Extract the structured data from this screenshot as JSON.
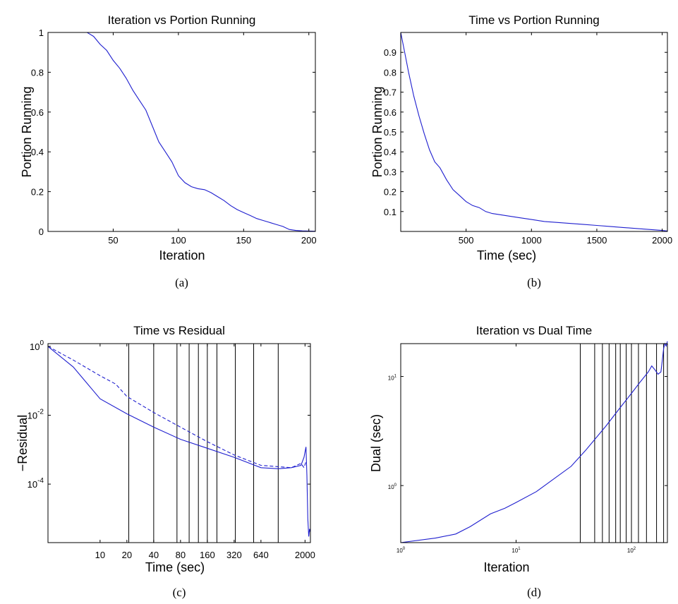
{
  "chart_data": [
    {
      "id": "a",
      "type": "line",
      "title": "Iteration vs Portion Running",
      "xlabel": "Iteration",
      "ylabel": "Portion Running",
      "caption": "(a)",
      "xlim": [
        0,
        205
      ],
      "ylim": [
        0,
        1
      ],
      "xticks": [
        50,
        100,
        150,
        200
      ],
      "yticks": [
        0,
        0.2,
        0.4,
        0.6,
        0.8,
        1
      ],
      "ytick_labels": [
        "0",
        "0.2",
        "0.4",
        "0.6",
        "0.8",
        "1"
      ],
      "series": [
        {
          "x": [
            0,
            10,
            20,
            30,
            35,
            40,
            45,
            50,
            55,
            60,
            65,
            70,
            75,
            80,
            85,
            90,
            95,
            100,
            105,
            110,
            115,
            120,
            125,
            130,
            135,
            140,
            145,
            150,
            155,
            160,
            165,
            170,
            175,
            180,
            185,
            190,
            195,
            200,
            205
          ],
          "y": [
            1,
            1,
            1,
            1,
            0.98,
            0.94,
            0.91,
            0.86,
            0.82,
            0.77,
            0.71,
            0.66,
            0.61,
            0.53,
            0.45,
            0.4,
            0.35,
            0.28,
            0.245,
            0.225,
            0.215,
            0.21,
            0.195,
            0.175,
            0.155,
            0.13,
            0.11,
            0.095,
            0.08,
            0.065,
            0.055,
            0.045,
            0.035,
            0.025,
            0.01,
            0.005,
            0.003,
            0.002,
            0.001
          ]
        }
      ]
    },
    {
      "id": "b",
      "type": "line",
      "title": "Time vs Portion Running",
      "xlabel": "Time (sec)",
      "ylabel": "Portion Running",
      "caption": "(b)",
      "xlim": [
        0,
        2040
      ],
      "ylim": [
        0,
        1
      ],
      "xticks": [
        500,
        1000,
        1500,
        2000
      ],
      "yticks": [
        0.1,
        0.2,
        0.3,
        0.4,
        0.5,
        0.6,
        0.7,
        0.8,
        0.9
      ],
      "ytick_labels": [
        "0.1",
        "0.2",
        "0.3",
        "0.4",
        "0.5",
        "0.6",
        "0.7",
        "0.8",
        "0.9"
      ],
      "series": [
        {
          "x": [
            0,
            30,
            60,
            100,
            140,
            180,
            220,
            260,
            300,
            350,
            400,
            450,
            500,
            550,
            600,
            650,
            700,
            800,
            900,
            1000,
            1100,
            1200,
            1300,
            1400,
            1500,
            1600,
            1700,
            1800,
            1900,
            2000,
            2040
          ],
          "y": [
            1,
            0.9,
            0.8,
            0.68,
            0.58,
            0.49,
            0.41,
            0.35,
            0.32,
            0.26,
            0.21,
            0.18,
            0.15,
            0.13,
            0.12,
            0.1,
            0.09,
            0.08,
            0.07,
            0.06,
            0.05,
            0.045,
            0.04,
            0.035,
            0.03,
            0.025,
            0.02,
            0.015,
            0.01,
            0.005,
            0.002
          ]
        }
      ]
    },
    {
      "id": "c",
      "type": "line",
      "title": "Time vs Residual",
      "xlabel": "Time (sec)",
      "ylabel": "−Residual",
      "caption": "(c)",
      "xscale": "log",
      "yscale": "log",
      "xlim": [
        2.6,
        2300
      ],
      "ylim": [
        2e-06,
        1.2
      ],
      "xticks": [
        10,
        20,
        40,
        80,
        160,
        320,
        640,
        2000
      ],
      "xtick_labels": [
        "10",
        "20",
        "40",
        "80",
        "160",
        "320",
        "640",
        "2000"
      ],
      "yticks": [
        1,
        0.01,
        0.0001
      ],
      "ytick_labels": [
        "10^0",
        "10^-2",
        "10^-4"
      ],
      "vlines": [
        21,
        40,
        73,
        100,
        127,
        160,
        205,
        330,
        530,
        1000
      ],
      "series": [
        {
          "style": "solid",
          "x": [
            2.6,
            5,
            10,
            20,
            40,
            80,
            160,
            320,
            640,
            1000,
            1400,
            1800,
            1950,
            2050,
            2100,
            2150,
            2200,
            2250,
            2300
          ],
          "y": [
            1.0,
            0.25,
            0.03,
            0.011,
            0.0045,
            0.002,
            0.0011,
            0.0006,
            0.0003,
            0.00028,
            0.0003,
            0.00035,
            0.0006,
            0.0012,
            0.00018,
            1e-05,
            3e-06,
            5e-06,
            4e-06
          ]
        },
        {
          "style": "dashed",
          "x": [
            2.6,
            5,
            10,
            15,
            20,
            40,
            80,
            160,
            320,
            640,
            1000,
            1400,
            1800,
            1950,
            2050
          ],
          "y": [
            1.0,
            0.4,
            0.14,
            0.08,
            0.035,
            0.012,
            0.0045,
            0.0017,
            0.0007,
            0.00035,
            0.00032,
            0.0003,
            0.0004,
            0.0003,
            0.00045
          ]
        }
      ]
    },
    {
      "id": "d",
      "type": "line",
      "title": "Iteration vs Dual Time",
      "xlabel": "Iteration",
      "ylabel": "Dual (sec)",
      "caption": "(d)",
      "xscale": "log",
      "yscale": "log",
      "xlim": [
        1,
        205
      ],
      "ylim": [
        0.3,
        20
      ],
      "xticks": [
        1,
        10,
        100
      ],
      "xtick_labels": [
        "10^0",
        "10^1",
        "10^2"
      ],
      "yticks": [
        1,
        10
      ],
      "ytick_labels": [
        "10^0",
        "10^1"
      ],
      "vlines": [
        36,
        48,
        56,
        64,
        73,
        80,
        90,
        100,
        115,
        135,
        165,
        190
      ],
      "series": [
        {
          "x": [
            1,
            2,
            3,
            4,
            6,
            8,
            10,
            15,
            20,
            30,
            40,
            60,
            80,
            100,
            120,
            140,
            150,
            160,
            170,
            180,
            185,
            190,
            195,
            200,
            205
          ],
          "y": [
            0.3,
            0.33,
            0.36,
            0.42,
            0.55,
            0.62,
            0.7,
            0.88,
            1.1,
            1.5,
            2.1,
            3.5,
            5.2,
            7,
            9,
            11,
            12.5,
            11.5,
            10.5,
            11,
            14,
            18,
            20,
            19,
            21
          ]
        }
      ]
    }
  ]
}
